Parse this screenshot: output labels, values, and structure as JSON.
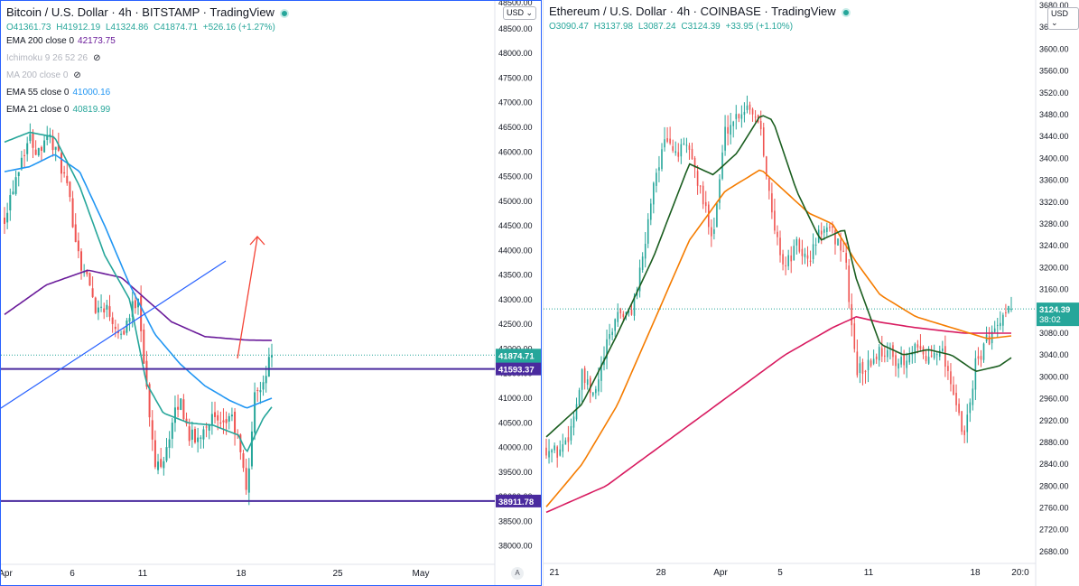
{
  "left_chart": {
    "title": "Bitcoin / U.S. Dollar · 4h · BITSTAMP · TradingView",
    "currency": "USD",
    "ohlc": {
      "o": "O41361.73",
      "h": "H41912.19",
      "l": "L41324.86",
      "c": "C41874.71",
      "chg": "+526.16 (+1.27%)"
    },
    "indicators": [
      {
        "label": "EMA 200 close 0",
        "value": "42173.75",
        "color": "#6a1b9a",
        "muted": false,
        "eye": false
      },
      {
        "label": "Ichimoku 9 26 52 26",
        "value": "",
        "color": "#b2b5be",
        "muted": true,
        "eye": true
      },
      {
        "label": "MA 200 close 0",
        "value": "",
        "color": "#b2b5be",
        "muted": true,
        "eye": true
      },
      {
        "label": "EMA 55 close 0",
        "value": "41000.16",
        "color": "#2196f3",
        "muted": false,
        "eye": false
      },
      {
        "label": "EMA 21 close 0",
        "value": "40819.99",
        "color": "#26a69a",
        "muted": false,
        "eye": false
      }
    ],
    "price_labels": [
      {
        "text": "41874.71",
        "sub": "38:02",
        "value": 41874.71,
        "color": "#26a69a"
      },
      {
        "text": "41593.37",
        "sub": "",
        "value": 41593.37,
        "color": "#4a2a9e"
      },
      {
        "text": "38911.78",
        "sub": "",
        "value": 38911.78,
        "color": "#4a2a9e"
      }
    ],
    "x_ticks": [
      "Apr",
      "6",
      "11",
      "18",
      "25",
      "May"
    ],
    "auto_label": "A"
  },
  "right_chart": {
    "title": "Ethereum / U.S. Dollar · 4h · COINBASE · TradingView",
    "currency": "USD",
    "ohlc": {
      "o": "O3090.47",
      "h": "H3137.98",
      "l": "L3087.24",
      "c": "C3124.39",
      "chg": "+33.95 (+1.10%)"
    },
    "price_label": {
      "text": "3124.39",
      "sub": "38:02",
      "value": 3124.39,
      "color": "#26a69a"
    },
    "x_ticks": [
      "21",
      "28",
      "Apr",
      "5",
      "11",
      "18",
      "20:0"
    ]
  },
  "chart_data": [
    {
      "type": "candlestick",
      "title": "Bitcoin / U.S. Dollar · 4h · BITSTAMP",
      "ylim": [
        37700,
        48700
      ],
      "y_ticks": [
        38000,
        38500,
        39000,
        39500,
        40000,
        40500,
        41000,
        41500,
        42000,
        42500,
        43000,
        43500,
        44000,
        44500,
        45000,
        45500,
        46000,
        46500,
        47000,
        47500,
        48000,
        48500
      ],
      "x_ticks": [
        "Apr",
        "6",
        "11",
        "18",
        "25",
        "May"
      ],
      "close_path": [
        [
          0,
          44700
        ],
        [
          1,
          45300
        ],
        [
          2,
          45900
        ],
        [
          3,
          46300
        ],
        [
          4,
          46000
        ],
        [
          5,
          46400
        ],
        [
          6,
          46100
        ],
        [
          7,
          45600
        ],
        [
          8,
          44800
        ],
        [
          9,
          43800
        ],
        [
          10,
          43400
        ],
        [
          11,
          42800
        ],
        [
          12,
          42900
        ],
        [
          13,
          42600
        ],
        [
          14,
          42300
        ],
        [
          15,
          42700
        ],
        [
          16,
          43100
        ],
        [
          17,
          41200
        ],
        [
          18,
          39600
        ],
        [
          19,
          39800
        ],
        [
          20,
          40400
        ],
        [
          21,
          41000
        ],
        [
          22,
          40300
        ],
        [
          23,
          40100
        ],
        [
          24,
          40500
        ],
        [
          25,
          40600
        ],
        [
          26,
          40300
        ],
        [
          27,
          40700
        ],
        [
          28,
          40100
        ],
        [
          29,
          39100
        ],
        [
          30,
          41100
        ],
        [
          31,
          41400
        ],
        [
          32,
          41874.71
        ]
      ],
      "series": [
        {
          "name": "EMA 200 close 0",
          "color": "#6a1b9a",
          "last": 42173.75,
          "values": [
            [
              0,
              42700
            ],
            [
              5,
              43300
            ],
            [
              10,
              43600
            ],
            [
              14,
              43450
            ],
            [
              17,
              43000
            ],
            [
              20,
              42550
            ],
            [
              24,
              42250
            ],
            [
              29,
              42180
            ],
            [
              32,
              42173.75
            ]
          ]
        },
        {
          "name": "EMA 55 close 0",
          "color": "#2196f3",
          "last": 41000.16,
          "values": [
            [
              0,
              45600
            ],
            [
              3,
              45700
            ],
            [
              6,
              45950
            ],
            [
              9,
              45600
            ],
            [
              12,
              44500
            ],
            [
              15,
              43300
            ],
            [
              18,
              42300
            ],
            [
              21,
              41700
            ],
            [
              24,
              41250
            ],
            [
              27,
              40950
            ],
            [
              29,
              40800
            ],
            [
              32,
              41000.16
            ]
          ]
        },
        {
          "name": "EMA 21 close 0",
          "color": "#26a69a",
          "last": 40819.99,
          "values": [
            [
              0,
              46200
            ],
            [
              3,
              46400
            ],
            [
              6,
              46300
            ],
            [
              9,
              45300
            ],
            [
              12,
              43900
            ],
            [
              15,
              43000
            ],
            [
              17,
              41300
            ],
            [
              19,
              40700
            ],
            [
              22,
              40500
            ],
            [
              25,
              40450
            ],
            [
              28,
              40250
            ],
            [
              29,
              39900
            ],
            [
              31,
              40600
            ],
            [
              32,
              40819.99
            ]
          ]
        }
      ],
      "levels": [
        41593.37,
        38911.78
      ]
    },
    {
      "type": "candlestick",
      "title": "Ethereum / U.S. Dollar · 4h · COINBASE",
      "ylim": [
        2665,
        3685
      ],
      "y_ticks": [
        2680,
        2720,
        2760,
        2800,
        2840,
        2880,
        2920,
        2960,
        3000,
        3040,
        3080,
        3120,
        3160,
        3200,
        3240,
        3280,
        3320,
        3360,
        3400,
        3440,
        3480,
        3520,
        3560,
        3600,
        3640,
        3680
      ],
      "x_ticks": [
        "21",
        "28",
        "Apr",
        "5",
        "11",
        "18",
        "20:0"
      ],
      "close_path": [
        [
          0,
          2870
        ],
        [
          2,
          2860
        ],
        [
          4,
          2900
        ],
        [
          6,
          3000
        ],
        [
          8,
          2960
        ],
        [
          10,
          3050
        ],
        [
          12,
          3120
        ],
        [
          14,
          3110
        ],
        [
          16,
          3200
        ],
        [
          18,
          3360
        ],
        [
          20,
          3430
        ],
        [
          22,
          3410
        ],
        [
          24,
          3420
        ],
        [
          26,
          3330
        ],
        [
          28,
          3260
        ],
        [
          30,
          3450
        ],
        [
          32,
          3480
        ],
        [
          34,
          3500
        ],
        [
          36,
          3460
        ],
        [
          38,
          3280
        ],
        [
          40,
          3200
        ],
        [
          42,
          3240
        ],
        [
          44,
          3210
        ],
        [
          46,
          3270
        ],
        [
          48,
          3260
        ],
        [
          50,
          3230
        ],
        [
          52,
          3010
        ],
        [
          54,
          3020
        ],
        [
          56,
          3050
        ],
        [
          58,
          3040
        ],
        [
          60,
          3020
        ],
        [
          62,
          3050
        ],
        [
          64,
          3030
        ],
        [
          66,
          3060
        ],
        [
          68,
          2990
        ],
        [
          70,
          2880
        ],
        [
          72,
          3020
        ],
        [
          74,
          3070
        ],
        [
          76,
          3090
        ],
        [
          78,
          3124.39
        ]
      ],
      "series": [
        {
          "name": "EMA 200",
          "color": "#d81b60",
          "values": [
            [
              0,
              2752
            ],
            [
              10,
              2800
            ],
            [
              20,
              2880
            ],
            [
              30,
              2960
            ],
            [
              40,
              3040
            ],
            [
              48,
              3090
            ],
            [
              52,
              3110
            ],
            [
              56,
              3100
            ],
            [
              62,
              3090
            ],
            [
              70,
              3080
            ],
            [
              78,
              3080
            ]
          ]
        },
        {
          "name": "EMA 55",
          "color": "#f57c00",
          "values": [
            [
              0,
              2762
            ],
            [
              6,
              2840
            ],
            [
              12,
              2950
            ],
            [
              18,
              3100
            ],
            [
              24,
              3250
            ],
            [
              30,
              3340
            ],
            [
              36,
              3380
            ],
            [
              40,
              3340
            ],
            [
              44,
              3300
            ],
            [
              48,
              3280
            ],
            [
              52,
              3210
            ],
            [
              56,
              3150
            ],
            [
              62,
              3110
            ],
            [
              68,
              3090
            ],
            [
              74,
              3070
            ],
            [
              78,
              3075
            ]
          ]
        },
        {
          "name": "EMA 21",
          "color": "#1b5e20",
          "values": [
            [
              0,
              2890
            ],
            [
              6,
              2950
            ],
            [
              12,
              3080
            ],
            [
              18,
              3220
            ],
            [
              24,
              3390
            ],
            [
              28,
              3370
            ],
            [
              32,
              3410
            ],
            [
              36,
              3480
            ],
            [
              38,
              3470
            ],
            [
              42,
              3340
            ],
            [
              46,
              3250
            ],
            [
              50,
              3270
            ],
            [
              52,
              3180
            ],
            [
              56,
              3060
            ],
            [
              60,
              3040
            ],
            [
              64,
              3050
            ],
            [
              68,
              3040
            ],
            [
              72,
              3010
            ],
            [
              76,
              3020
            ],
            [
              78,
              3035
            ]
          ]
        }
      ]
    }
  ]
}
